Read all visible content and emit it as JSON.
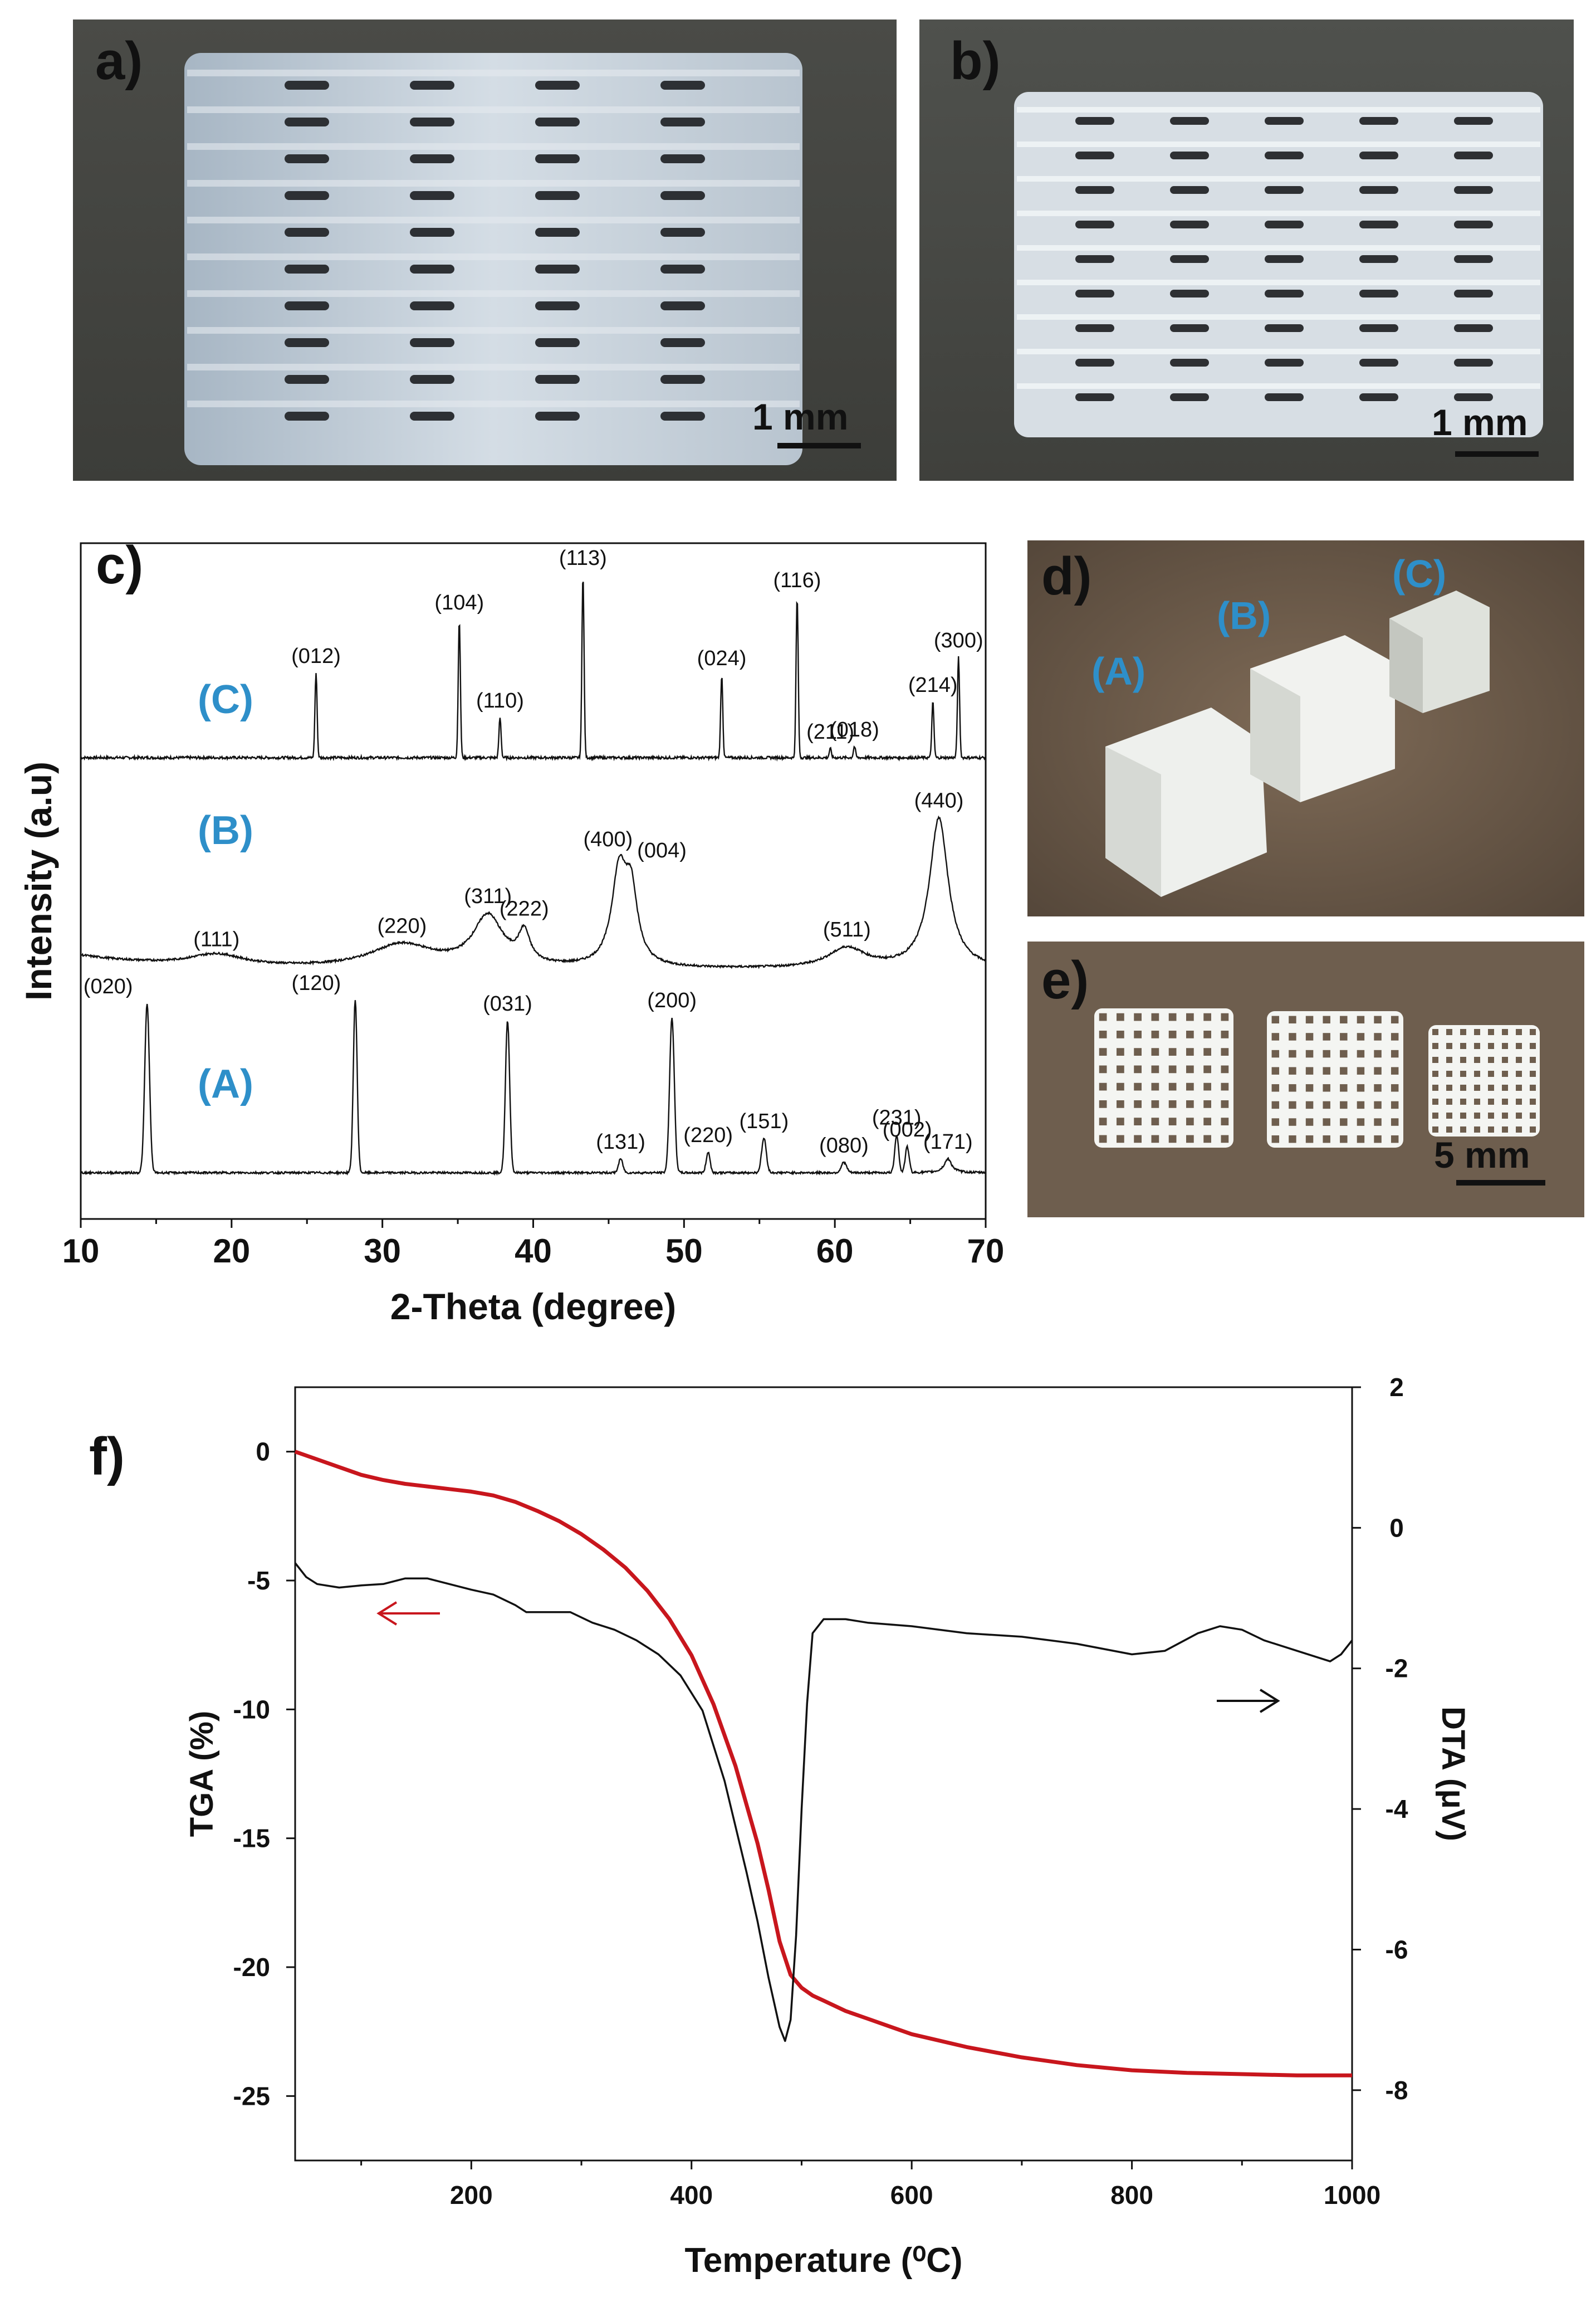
{
  "panels": {
    "a": {
      "label": "a)",
      "scale": "1 mm"
    },
    "b": {
      "label": "b)",
      "scale": "1 mm"
    },
    "c": {
      "label": "c)"
    },
    "d": {
      "label": "d)",
      "tags": [
        "(A)",
        "(B)",
        "(C)"
      ]
    },
    "e": {
      "label": "e)",
      "scale": "5 mm"
    },
    "f": {
      "label": "f)"
    }
  },
  "colors": {
    "accent_blue": "#2e8fc9",
    "tga_red": "#c8161d",
    "dta_black": "#111111"
  },
  "chart_data": [
    {
      "type": "line",
      "xlabel": "2-Theta (degree)",
      "ylabel": "Intensity (a.u)",
      "xlim": [
        10,
        70
      ],
      "xticks": [
        10,
        20,
        30,
        40,
        50,
        60,
        70
      ],
      "series": [
        {
          "name": "(C)",
          "baseline": 0.25,
          "peaks": [
            {
              "x": 25.6,
              "h": 0.38,
              "w": 0.1,
              "label": "(012)"
            },
            {
              "x": 35.1,
              "h": 0.62,
              "w": 0.1,
              "label": "(104)"
            },
            {
              "x": 37.8,
              "h": 0.18,
              "w": 0.1,
              "label": "(110)"
            },
            {
              "x": 43.3,
              "h": 0.82,
              "w": 0.1,
              "label": "(113)"
            },
            {
              "x": 52.5,
              "h": 0.37,
              "w": 0.1,
              "label": "(024)"
            },
            {
              "x": 57.5,
              "h": 0.72,
              "w": 0.1,
              "label": "(116)"
            },
            {
              "x": 59.7,
              "h": 0.04,
              "w": 0.1,
              "label": "(211)"
            },
            {
              "x": 61.3,
              "h": 0.05,
              "w": 0.1,
              "label": "(018)"
            },
            {
              "x": 66.5,
              "h": 0.25,
              "w": 0.1,
              "label": "(214)"
            },
            {
              "x": 68.2,
              "h": 0.45,
              "w": 0.1,
              "label": "(300)"
            }
          ]
        },
        {
          "name": "(B)",
          "baseline": 0.2,
          "peaks": [
            {
              "x": 19.0,
              "h": 0.07,
              "w": 2.2,
              "label": "(111)"
            },
            {
              "x": 31.3,
              "h": 0.14,
              "w": 2.6,
              "label": "(220)"
            },
            {
              "x": 37.0,
              "h": 0.3,
              "w": 1.2,
              "label": "(311)"
            },
            {
              "x": 39.4,
              "h": 0.18,
              "w": 0.45,
              "label": "(222)"
            },
            {
              "x": 45.7,
              "h": 0.55,
              "w": 0.6,
              "label": "(400)"
            },
            {
              "x": 46.5,
              "h": 0.4,
              "w": 0.5,
              "label": "(004)"
            },
            {
              "x": 60.8,
              "h": 0.12,
              "w": 1.5,
              "label": "(511)"
            },
            {
              "x": 66.9,
              "h": 0.9,
              "w": 0.75,
              "label": "(440)"
            }
          ]
        },
        {
          "name": "(A)",
          "baseline": 0.2,
          "peaks": [
            {
              "x": 14.4,
              "h": 0.98,
              "w": 0.22,
              "label": "(020)"
            },
            {
              "x": 28.2,
              "h": 1.0,
              "w": 0.18,
              "label": "(120)"
            },
            {
              "x": 38.3,
              "h": 0.88,
              "w": 0.2,
              "label": "(031)"
            },
            {
              "x": 45.8,
              "h": 0.08,
              "w": 0.2,
              "label": "(131)"
            },
            {
              "x": 49.2,
              "h": 0.9,
              "w": 0.22,
              "label": "(200)"
            },
            {
              "x": 51.6,
              "h": 0.12,
              "w": 0.18,
              "label": "(220)"
            },
            {
              "x": 55.3,
              "h": 0.2,
              "w": 0.22,
              "label": "(151)"
            },
            {
              "x": 60.6,
              "h": 0.06,
              "w": 0.25,
              "label": "(080)"
            },
            {
              "x": 64.1,
              "h": 0.22,
              "w": 0.18,
              "label": "(231)"
            },
            {
              "x": 64.8,
              "h": 0.15,
              "w": 0.18,
              "label": "(002)"
            },
            {
              "x": 67.5,
              "h": 0.08,
              "w": 0.3,
              "label": "(171)"
            }
          ]
        }
      ]
    },
    {
      "type": "line",
      "xlabel": "Temperature (⁰C)",
      "ylabel": "TGA (%)",
      "ylabel_right": "DTA (μV)",
      "xlim": [
        40,
        1000
      ],
      "xticks": [
        200,
        400,
        600,
        800,
        1000
      ],
      "ylim": [
        -27.5,
        2.5
      ],
      "yticks": [
        0,
        -5,
        -10,
        -15,
        -20,
        -25
      ],
      "ylim_right": [
        -9,
        2
      ],
      "yticks_right": [
        2,
        0,
        -2,
        -4,
        -6,
        -8
      ],
      "series": [
        {
          "name": "TGA",
          "axis": "left",
          "x": [
            40,
            60,
            80,
            100,
            120,
            140,
            160,
            180,
            200,
            220,
            240,
            260,
            280,
            300,
            320,
            340,
            360,
            380,
            400,
            420,
            440,
            460,
            470,
            480,
            490,
            500,
            510,
            520,
            540,
            560,
            580,
            600,
            650,
            700,
            750,
            800,
            850,
            900,
            950,
            1000
          ],
          "y": [
            0,
            -0.3,
            -0.6,
            -0.9,
            -1.1,
            -1.25,
            -1.35,
            -1.45,
            -1.55,
            -1.7,
            -1.95,
            -2.3,
            -2.7,
            -3.2,
            -3.8,
            -4.5,
            -5.4,
            -6.5,
            -7.9,
            -9.8,
            -12.2,
            -15.2,
            -17.0,
            -19.0,
            -20.3,
            -20.8,
            -21.1,
            -21.3,
            -21.7,
            -22.0,
            -22.3,
            -22.6,
            -23.1,
            -23.5,
            -23.8,
            -24.0,
            -24.1,
            -24.15,
            -24.2,
            -24.2
          ]
        },
        {
          "name": "DTA",
          "axis": "right",
          "x": [
            40,
            50,
            60,
            80,
            100,
            120,
            140,
            160,
            180,
            200,
            220,
            240,
            250,
            270,
            290,
            310,
            330,
            350,
            370,
            390,
            410,
            430,
            450,
            460,
            470,
            480,
            485,
            490,
            495,
            500,
            505,
            510,
            520,
            540,
            560,
            600,
            650,
            700,
            750,
            800,
            830,
            860,
            880,
            900,
            920,
            950,
            980,
            990,
            1000
          ],
          "y": [
            -0.5,
            -0.7,
            -0.8,
            -0.85,
            -0.82,
            -0.8,
            -0.72,
            -0.72,
            -0.8,
            -0.88,
            -0.95,
            -1.1,
            -1.2,
            -1.2,
            -1.2,
            -1.35,
            -1.45,
            -1.6,
            -1.8,
            -2.1,
            -2.6,
            -3.6,
            -4.9,
            -5.6,
            -6.4,
            -7.1,
            -7.3,
            -7.0,
            -5.8,
            -4.0,
            -2.5,
            -1.5,
            -1.3,
            -1.3,
            -1.35,
            -1.4,
            -1.5,
            -1.55,
            -1.65,
            -1.8,
            -1.75,
            -1.5,
            -1.4,
            -1.45,
            -1.6,
            -1.75,
            -1.9,
            -1.8,
            -1.6
          ]
        }
      ]
    }
  ]
}
